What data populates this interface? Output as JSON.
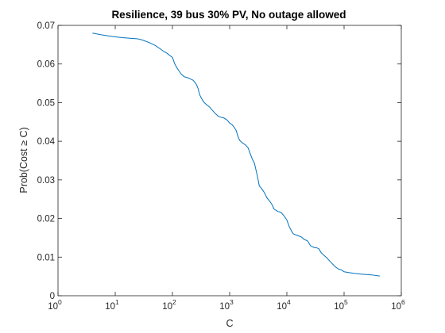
{
  "chart_data": {
    "type": "line",
    "title": "Resilience, 39 bus 30% PV, No outage allowed",
    "xlabel": "C",
    "ylabel": "Prob(Cost ≥ C)",
    "xscale": "log",
    "xlim": [
      1,
      1000000
    ],
    "ylim": [
      0,
      0.07
    ],
    "grid": false,
    "legend": "none",
    "x_ticks": [
      {
        "value": 1,
        "base": "10",
        "exp": "0"
      },
      {
        "value": 10,
        "base": "10",
        "exp": "1"
      },
      {
        "value": 100,
        "base": "10",
        "exp": "2"
      },
      {
        "value": 1000,
        "base": "10",
        "exp": "3"
      },
      {
        "value": 10000,
        "base": "10",
        "exp": "4"
      },
      {
        "value": 100000,
        "base": "10",
        "exp": "5"
      },
      {
        "value": 1000000,
        "base": "10",
        "exp": "6"
      }
    ],
    "y_ticks": [
      {
        "value": 0,
        "label": "0"
      },
      {
        "value": 0.01,
        "label": "0.01"
      },
      {
        "value": 0.02,
        "label": "0.02"
      },
      {
        "value": 0.03,
        "label": "0.03"
      },
      {
        "value": 0.04,
        "label": "0.04"
      },
      {
        "value": 0.05,
        "label": "0.05"
      },
      {
        "value": 0.06,
        "label": "0.06"
      },
      {
        "value": 0.07,
        "label": "0.07"
      }
    ],
    "series": [
      {
        "color": "#0072bd",
        "x": [
          4,
          6,
          9,
          14,
          20,
          25,
          30,
          40,
          50,
          60,
          70,
          80,
          90,
          100,
          110,
          120,
          140,
          160,
          180,
          200,
          230,
          260,
          280,
          300,
          330,
          360,
          400,
          450,
          500,
          560,
          630,
          700,
          800,
          900,
          1000,
          1100,
          1200,
          1300,
          1400,
          1500,
          1700,
          1900,
          2100,
          2300,
          2500,
          2700,
          2900,
          3100,
          3300,
          3600,
          4000,
          4500,
          5000,
          5500,
          6000,
          6500,
          7000,
          7500,
          8000,
          9000,
          10000,
          11000,
          12000,
          13000,
          14000,
          16000,
          18000,
          20000,
          23000,
          26000,
          30000,
          33000,
          36000,
          40000,
          45000,
          50000,
          56000,
          63000,
          70000,
          80000,
          90000,
          100000,
          110000,
          120000,
          150000,
          200000,
          300000,
          420000
        ],
        "y": [
          0.068,
          0.0675,
          0.0671,
          0.0668,
          0.0666,
          0.0665,
          0.0662,
          0.0655,
          0.0648,
          0.064,
          0.0633,
          0.0628,
          0.0622,
          0.0617,
          0.06,
          0.059,
          0.0575,
          0.0567,
          0.0565,
          0.0562,
          0.0558,
          0.0548,
          0.0537,
          0.052,
          0.0508,
          0.05,
          0.0494,
          0.0488,
          0.048,
          0.0472,
          0.0465,
          0.0462,
          0.046,
          0.0455,
          0.0447,
          0.0443,
          0.0436,
          0.0428,
          0.0412,
          0.0402,
          0.0395,
          0.039,
          0.0383,
          0.0367,
          0.0353,
          0.0344,
          0.0324,
          0.0305,
          0.0284,
          0.0278,
          0.0268,
          0.0253,
          0.0245,
          0.0236,
          0.0224,
          0.0221,
          0.0218,
          0.0217,
          0.0215,
          0.0206,
          0.0196,
          0.0179,
          0.0168,
          0.016,
          0.0158,
          0.0155,
          0.0152,
          0.0146,
          0.0142,
          0.0129,
          0.0125,
          0.0124,
          0.0122,
          0.0111,
          0.0104,
          0.0098,
          0.009,
          0.0082,
          0.0075,
          0.0069,
          0.0067,
          0.0062,
          0.0061,
          0.006,
          0.0058,
          0.0056,
          0.0054,
          0.0051
        ]
      }
    ]
  }
}
